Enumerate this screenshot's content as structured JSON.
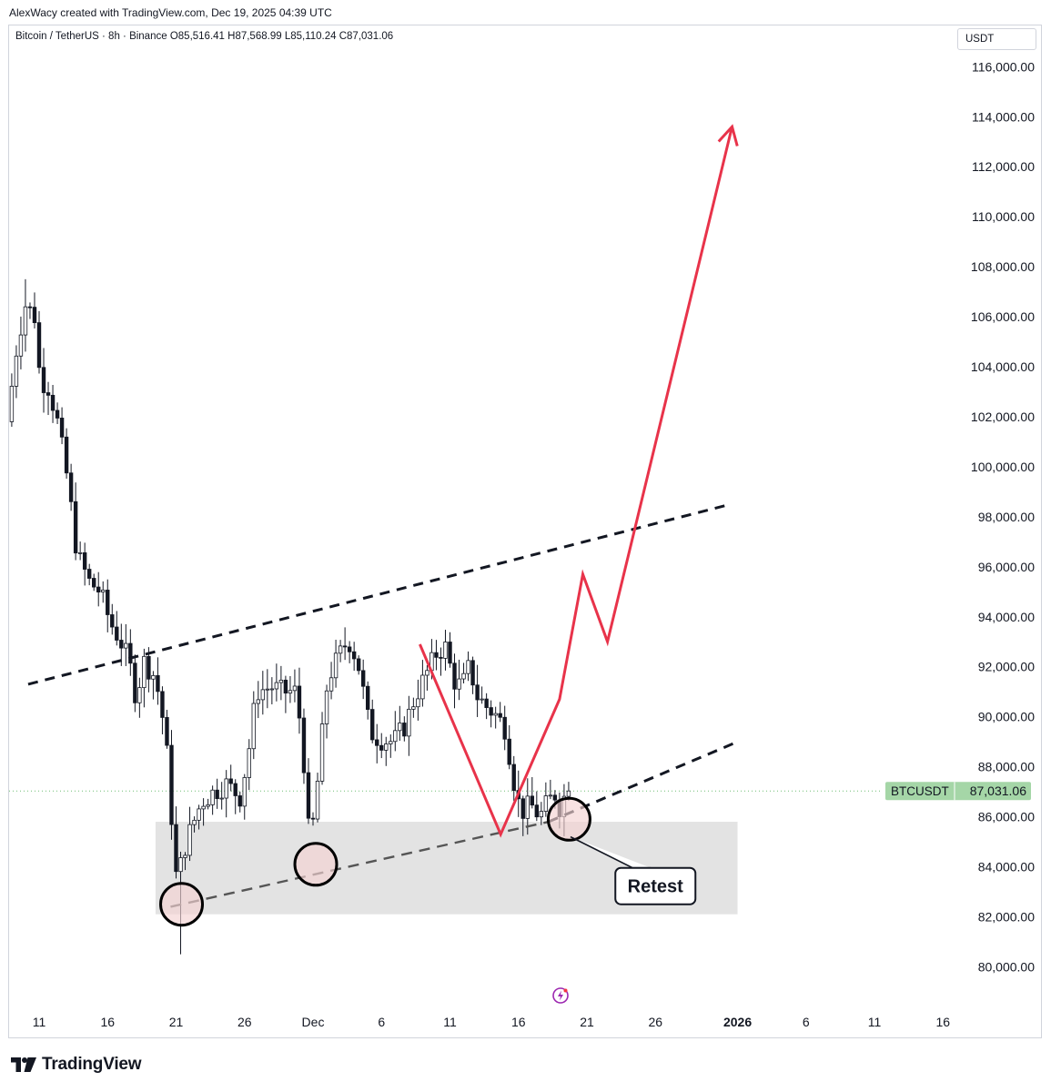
{
  "header": {
    "credit": "AlexWacy created with TradingView.com, Dec 19, 2025 04:39 UTC"
  },
  "legend": {
    "symbol": "Bitcoin / TetherUS · 8h · Binance",
    "open": "O85,516.41",
    "high": "H87,568.99",
    "low": "L85,110.24",
    "close": "C87,031.06"
  },
  "price_axis": {
    "unit": "USDT"
  },
  "last_price": {
    "ticker": "BTCUSDT",
    "value": "87,031.06",
    "color": "#a5d6a7"
  },
  "annotation": {
    "retest_label": "Retest"
  },
  "brand": {
    "name": "TradingView"
  },
  "colors": {
    "up_candle": "#ffffff",
    "down_candle": "#131722",
    "projection": "#e8334a",
    "support_zone": "#e3e3e3",
    "circle_fill": "#f4d3d3"
  },
  "chart_data": {
    "type": "candlestick",
    "timeframe": "8h",
    "y_ticks": [
      "116,000.00",
      "114,000.00",
      "112,000.00",
      "110,000.00",
      "108,000.00",
      "106,000.00",
      "104,000.00",
      "102,000.00",
      "100,000.00",
      "98,000.00",
      "96,000.00",
      "94,000.00",
      "92,000.00",
      "90,000.00",
      "88,000.00",
      "86,000.00",
      "84,000.00",
      "82,000.00",
      "80,000.00"
    ],
    "y_tick_values": [
      116000,
      114000,
      112000,
      110000,
      108000,
      106000,
      104000,
      102000,
      100000,
      98000,
      96000,
      94000,
      92000,
      90000,
      88000,
      86000,
      84000,
      82000,
      80000
    ],
    "x_ticks": [
      {
        "label": "11",
        "day": 0
      },
      {
        "label": "16",
        "day": 5
      },
      {
        "label": "21",
        "day": 10
      },
      {
        "label": "26",
        "day": 15
      },
      {
        "label": "Dec",
        "day": 20
      },
      {
        "label": "6",
        "day": 25
      },
      {
        "label": "11",
        "day": 30
      },
      {
        "label": "16",
        "day": 35
      },
      {
        "label": "21",
        "day": 40
      },
      {
        "label": "26",
        "day": 45
      },
      {
        "label": "2026",
        "day": 51
      },
      {
        "label": "6",
        "day": 56
      },
      {
        "label": "11",
        "day": 61
      },
      {
        "label": "16",
        "day": 66
      }
    ],
    "x_axis_start": "Nov 11, 2025",
    "price_waypoints": [
      [
        -2.0,
        101800
      ],
      [
        -1.3,
        104800
      ],
      [
        -0.7,
        106500
      ],
      [
        0.0,
        106000
      ],
      [
        0.4,
        103500
      ],
      [
        1.0,
        103200
      ],
      [
        1.6,
        102000
      ],
      [
        2.4,
        99500
      ],
      [
        3.1,
        96500
      ],
      [
        4.0,
        95400
      ],
      [
        4.8,
        95000
      ],
      [
        5.5,
        93800
      ],
      [
        6.3,
        93000
      ],
      [
        6.9,
        92200
      ],
      [
        7.4,
        90800
      ],
      [
        8.0,
        92200
      ],
      [
        8.8,
        91600
      ],
      [
        9.2,
        90500
      ],
      [
        9.6,
        89000
      ],
      [
        10.0,
        86000
      ],
      [
        10.4,
        83200
      ],
      [
        10.8,
        84500
      ],
      [
        11.4,
        85500
      ],
      [
        12.2,
        86600
      ],
      [
        13.1,
        87000
      ],
      [
        14.0,
        87300
      ],
      [
        15.0,
        86800
      ],
      [
        15.6,
        88500
      ],
      [
        16.2,
        91000
      ],
      [
        17.3,
        91200
      ],
      [
        18.1,
        91000
      ],
      [
        19.0,
        91000
      ],
      [
        19.5,
        89500
      ],
      [
        20.0,
        85500
      ],
      [
        20.4,
        85800
      ],
      [
        20.8,
        88200
      ],
      [
        21.4,
        91500
      ],
      [
        22.2,
        92400
      ],
      [
        22.9,
        93100
      ],
      [
        23.6,
        92200
      ],
      [
        24.0,
        91000
      ],
      [
        24.5,
        89400
      ],
      [
        25.2,
        89100
      ],
      [
        26.2,
        89000
      ],
      [
        27.0,
        89600
      ],
      [
        27.8,
        90800
      ],
      [
        28.6,
        91700
      ],
      [
        29.4,
        92600
      ],
      [
        30.1,
        92800
      ],
      [
        30.5,
        91500
      ],
      [
        31.2,
        91200
      ],
      [
        31.8,
        92100
      ],
      [
        32.2,
        90900
      ],
      [
        33.0,
        90400
      ],
      [
        33.8,
        90000
      ],
      [
        34.4,
        89500
      ],
      [
        34.9,
        87700
      ],
      [
        35.3,
        86600
      ],
      [
        35.7,
        86200
      ],
      [
        36.2,
        86500
      ],
      [
        36.9,
        86000
      ],
      [
        37.5,
        86600
      ],
      [
        38.0,
        86900
      ],
      [
        38.4,
        86300
      ],
      [
        38.8,
        87031
      ]
    ],
    "highs_lows": {
      "swing_high": 107500,
      "swing_low": 80500
    },
    "drawings": {
      "upper_trendline": [
        [
          -0.8,
          91300
        ],
        [
          12.0,
          93200
        ],
        [
          21.0,
          93700
        ],
        [
          30.5,
          94600
        ],
        [
          50.5,
          98500
        ]
      ],
      "lower_trendline": [
        [
          9.6,
          82400
        ],
        [
          37.2,
          85800
        ],
        [
          51.0,
          89000
        ]
      ],
      "support_zone": {
        "x_start": 8.5,
        "x_end": 51.0,
        "y_low": 82100,
        "y_high": 85800
      },
      "circles": [
        [
          10.4,
          82500
        ],
        [
          20.2,
          84100
        ],
        [
          38.7,
          85900
        ]
      ],
      "projection_path": [
        [
          27.8,
          92900
        ],
        [
          33.7,
          85300
        ],
        [
          38.0,
          90700
        ],
        [
          39.7,
          95700
        ],
        [
          41.5,
          93000
        ],
        [
          50.6,
          113600
        ]
      ],
      "callout": {
        "anchor": [
          38.8,
          85200
        ],
        "label_center": [
          45.0,
          83300
        ]
      }
    }
  }
}
